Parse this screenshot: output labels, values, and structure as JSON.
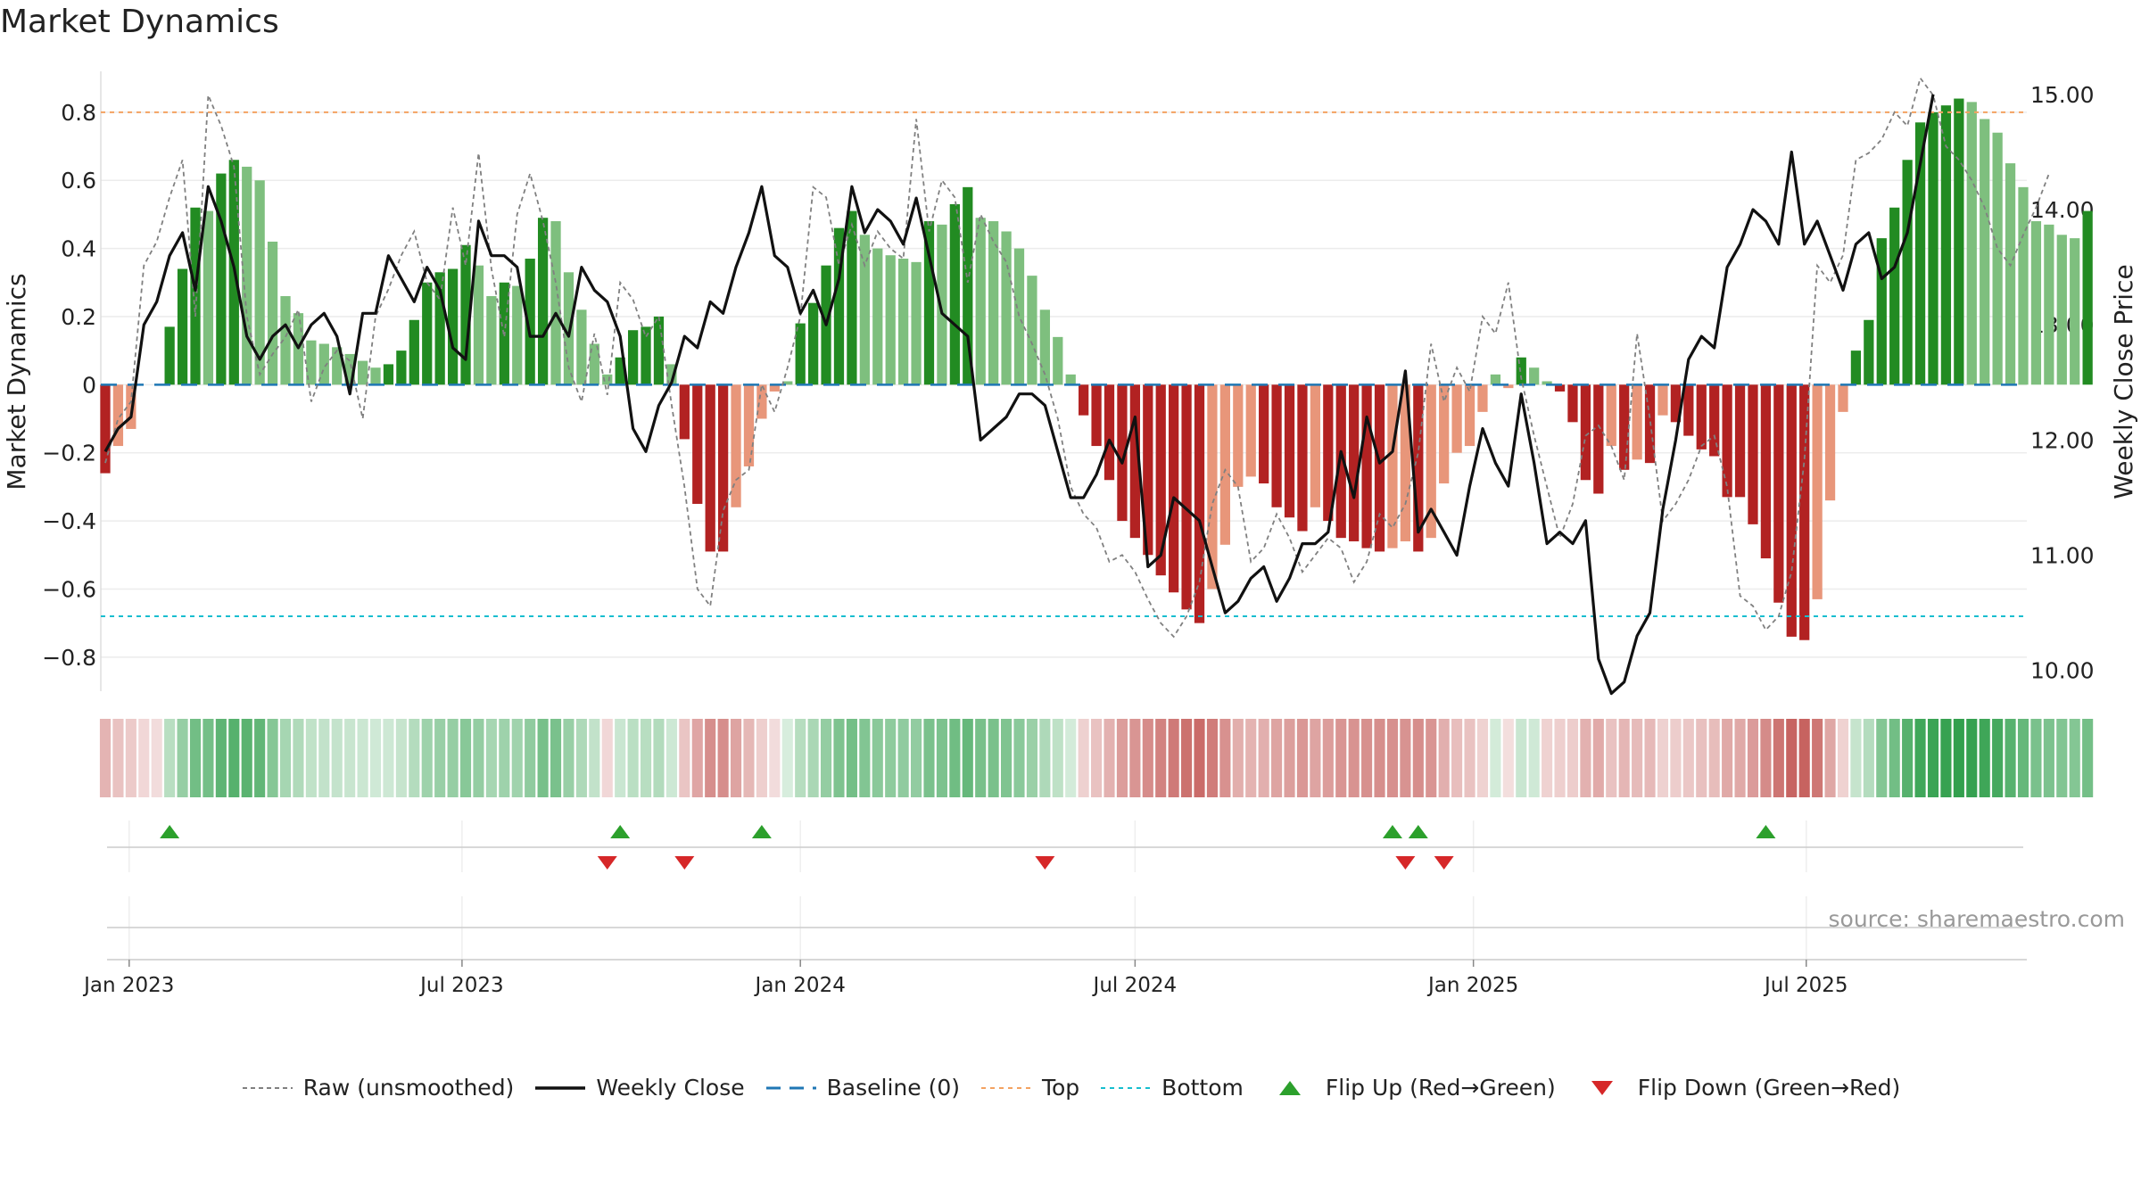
{
  "title": "Market Dynamics",
  "source": "source: sharemaestro.com",
  "chart_data": {
    "type": "bar",
    "x_start": "2022-12-19",
    "x_end": "2025-10-27",
    "x_step_days": 7,
    "left_axis": {
      "label": "Market Dynamics",
      "ylim": [
        -0.9,
        0.92
      ],
      "ticks": [
        "0.8",
        "0.6",
        "0.4",
        "0.2",
        "0",
        "−0.2",
        "−0.4",
        "−0.6",
        "−0.8"
      ],
      "tick_values": [
        0.8,
        0.6,
        0.4,
        0.2,
        0,
        -0.2,
        -0.4,
        -0.6,
        -0.8
      ]
    },
    "right_axis": {
      "label": "Weekly Close Price",
      "ylim": [
        9.82,
        15.2
      ],
      "ticks": [
        "15.00",
        "14.00",
        "13.00",
        "12.00",
        "11.00",
        "10.00"
      ],
      "tick_values": [
        15,
        14,
        13,
        12,
        11,
        10
      ]
    },
    "x_ticks": [
      {
        "label": "Jan 2023",
        "date": "2023-01-01"
      },
      {
        "label": "Jul 2023",
        "date": "2023-07-01"
      },
      {
        "label": "Jan 2024",
        "date": "2024-01-01"
      },
      {
        "label": "Jul 2024",
        "date": "2024-07-01"
      },
      {
        "label": "Jan 2025",
        "date": "2025-01-01"
      },
      {
        "label": "Jul 2025",
        "date": "2025-07-01"
      }
    ],
    "reference_lines": {
      "baseline": 0,
      "top": 0.8,
      "bottom": -0.68
    },
    "bars_values": [
      -0.26,
      -0.18,
      -0.13,
      0,
      0,
      0.17,
      0.34,
      0.52,
      0.51,
      0.62,
      0.66,
      0.64,
      0.6,
      0.42,
      0.26,
      0.21,
      0.13,
      0.12,
      0.11,
      0.09,
      0.07,
      0.05,
      0.06,
      0.1,
      0.19,
      0.3,
      0.33,
      0.34,
      0.41,
      0.35,
      0.26,
      0.3,
      0.29,
      0.37,
      0.49,
      0.48,
      0.33,
      0.22,
      0.12,
      0.03,
      0.08,
      0.16,
      0.17,
      0.2,
      0.06,
      -0.16,
      -0.35,
      -0.49,
      -0.49,
      -0.36,
      -0.24,
      -0.1,
      -0.02,
      0.01,
      0.18,
      0.24,
      0.35,
      0.46,
      0.51,
      0.44,
      0.4,
      0.38,
      0.37,
      0.36,
      0.48,
      0.47,
      0.53,
      0.58,
      0.49,
      0.48,
      0.45,
      0.4,
      0.32,
      0.22,
      0.14,
      0.03,
      -0.09,
      -0.18,
      -0.28,
      -0.4,
      -0.45,
      -0.5,
      -0.56,
      -0.61,
      -0.66,
      -0.7,
      -0.6,
      -0.47,
      -0.3,
      -0.27,
      -0.29,
      -0.36,
      -0.39,
      -0.43,
      -0.36,
      -0.4,
      -0.45,
      -0.46,
      -0.48,
      -0.49,
      -0.48,
      -0.46,
      -0.49,
      -0.45,
      -0.29,
      -0.2,
      -0.18,
      -0.08,
      0.03,
      -0.01,
      0.08,
      0.05,
      0.01,
      -0.02,
      -0.11,
      -0.28,
      -0.32,
      -0.18,
      -0.25,
      -0.22,
      -0.23,
      -0.09,
      -0.11,
      -0.15,
      -0.19,
      -0.21,
      -0.33,
      -0.33,
      -0.41,
      -0.51,
      -0.64,
      -0.74,
      -0.75,
      -0.63,
      -0.34,
      -0.08,
      0.1,
      0.19,
      0.43,
      0.52,
      0.66,
      0.77,
      0.8,
      0.82,
      0.84,
      0.83,
      0.78,
      0.74,
      0.65,
      0.58,
      0.48,
      0.47,
      0.44,
      0.43,
      0.51
    ],
    "raw_values": [
      -0.23,
      -0.1,
      -0.05,
      0.35,
      0.42,
      0.55,
      0.66,
      0.2,
      0.85,
      0.76,
      0.64,
      0.2,
      0.03,
      0.09,
      0.14,
      0.22,
      -0.05,
      0.05,
      0.1,
      0.07,
      -0.1,
      0.2,
      0.28,
      0.38,
      0.45,
      0.3,
      0.25,
      0.52,
      0.35,
      0.68,
      0.34,
      0.14,
      0.5,
      0.62,
      0.48,
      0.3,
      0.05,
      -0.05,
      0.15,
      -0.03,
      0.3,
      0.25,
      0.14,
      0.2,
      -0.06,
      -0.3,
      -0.6,
      -0.65,
      -0.37,
      -0.28,
      -0.25,
      0,
      -0.08,
      0.05,
      0.2,
      0.58,
      0.55,
      0.35,
      0.47,
      0.35,
      0.45,
      0.4,
      0.37,
      0.78,
      0.45,
      0.6,
      0.55,
      0.3,
      0.5,
      0.42,
      0.36,
      0.2,
      0.12,
      0.03,
      -0.1,
      -0.3,
      -0.38,
      -0.42,
      -0.52,
      -0.5,
      -0.55,
      -0.63,
      -0.7,
      -0.74,
      -0.68,
      -0.58,
      -0.35,
      -0.25,
      -0.3,
      -0.52,
      -0.48,
      -0.38,
      -0.45,
      -0.55,
      -0.5,
      -0.45,
      -0.48,
      -0.58,
      -0.52,
      -0.38,
      -0.42,
      -0.35,
      -0.2,
      0.12,
      -0.05,
      0.05,
      -0.02,
      0.2,
      0.15,
      0.3,
      0.02,
      -0.15,
      -0.3,
      -0.45,
      -0.35,
      -0.15,
      -0.12,
      -0.18,
      -0.28,
      0.15,
      -0.1,
      -0.4,
      -0.35,
      -0.28,
      -0.18,
      -0.15,
      -0.3,
      -0.62,
      -0.65,
      -0.72,
      -0.68,
      -0.55,
      -0.22,
      0.35,
      0.3,
      0.38,
      0.66,
      0.68,
      0.72,
      0.8,
      0.76,
      0.9,
      0.85,
      0.7,
      0.66,
      0.6,
      0.52,
      0.4,
      0.35,
      0.44,
      0.52,
      0.62
    ],
    "close_values": [
      11.9,
      12.1,
      12.2,
      13.0,
      13.2,
      13.6,
      13.8,
      13.3,
      14.2,
      13.9,
      13.5,
      12.9,
      12.7,
      12.9,
      13.0,
      12.8,
      13.0,
      13.1,
      12.9,
      12.4,
      13.1,
      13.1,
      13.6,
      13.4,
      13.2,
      13.5,
      13.3,
      12.8,
      12.7,
      13.9,
      13.6,
      13.6,
      13.5,
      12.9,
      12.9,
      13.1,
      12.9,
      13.5,
      13.3,
      13.2,
      12.9,
      12.1,
      11.9,
      12.3,
      12.5,
      12.9,
      12.8,
      13.2,
      13.1,
      13.5,
      13.8,
      14.2,
      13.6,
      13.5,
      13.1,
      13.3,
      13.0,
      13.4,
      14.2,
      13.8,
      14.0,
      13.9,
      13.7,
      14.1,
      13.6,
      13.1,
      13.0,
      12.9,
      12.0,
      12.1,
      12.2,
      12.4,
      12.4,
      12.3,
      11.9,
      11.5,
      11.5,
      11.7,
      12.0,
      11.8,
      12.2,
      10.9,
      11.0,
      11.5,
      11.4,
      11.3,
      10.9,
      10.5,
      10.6,
      10.8,
      10.9,
      10.6,
      10.8,
      11.1,
      11.1,
      11.2,
      11.9,
      11.5,
      12.2,
      11.8,
      11.9,
      12.6,
      11.2,
      11.4,
      11.2,
      11.0,
      11.6,
      12.1,
      11.8,
      11.6,
      12.4,
      11.8,
      11.1,
      11.2,
      11.1,
      11.3,
      10.1,
      9.8,
      9.9,
      10.3,
      10.5,
      11.4,
      12.0,
      12.7,
      12.9,
      12.8,
      13.5,
      13.7,
      14.0,
      13.9,
      13.7,
      14.5,
      13.7,
      13.9,
      13.6,
      13.3,
      13.7,
      13.8,
      13.4,
      13.5,
      13.8,
      14.4,
      15.0
    ],
    "state_values": [
      -0.26,
      -0.18,
      -0.13,
      -0.05,
      -0.02,
      0.17,
      0.34,
      0.52,
      0.51,
      0.62,
      0.66,
      0.64,
      0.6,
      0.42,
      0.26,
      0.21,
      0.13,
      0.12,
      0.11,
      0.09,
      0.07,
      0.05,
      0.06,
      0.1,
      0.19,
      0.3,
      0.33,
      0.34,
      0.41,
      0.35,
      0.26,
      0.3,
      0.29,
      0.37,
      0.49,
      0.48,
      0.33,
      0.22,
      0.12,
      -0.05,
      0.08,
      0.16,
      0.17,
      0.2,
      0.06,
      -0.16,
      -0.35,
      -0.49,
      -0.49,
      -0.36,
      -0.24,
      -0.1,
      -0.02,
      0.01,
      0.18,
      0.24,
      0.35,
      0.46,
      0.51,
      0.44,
      0.4,
      0.38,
      0.37,
      0.36,
      0.48,
      0.47,
      0.53,
      0.58,
      0.49,
      0.48,
      0.45,
      0.4,
      0.32,
      0.22,
      0.14,
      0.03,
      -0.09,
      -0.18,
      -0.28,
      -0.4,
      -0.45,
      -0.5,
      -0.56,
      -0.61,
      -0.66,
      -0.7,
      -0.6,
      -0.47,
      -0.3,
      -0.27,
      -0.29,
      -0.36,
      -0.39,
      -0.43,
      -0.36,
      -0.4,
      -0.45,
      -0.46,
      -0.48,
      -0.49,
      -0.48,
      -0.46,
      -0.49,
      -0.45,
      -0.29,
      -0.2,
      -0.18,
      -0.08,
      0.03,
      -0.01,
      0.08,
      0.05,
      -0.08,
      -0.1,
      -0.11,
      -0.28,
      -0.32,
      -0.18,
      -0.25,
      -0.22,
      -0.23,
      -0.09,
      -0.11,
      -0.15,
      -0.19,
      -0.21,
      -0.33,
      -0.33,
      -0.41,
      -0.51,
      -0.64,
      -0.74,
      -0.75,
      -0.63,
      -0.34,
      -0.08,
      0.1,
      0.19,
      0.43,
      0.52,
      0.66,
      0.77,
      0.8,
      0.82,
      0.84,
      0.83,
      0.78,
      0.74,
      0.65,
      0.58,
      0.48,
      0.47,
      0.44,
      0.43,
      0.51
    ],
    "flip_up_dates": [
      "2023-01-23",
      "2023-09-25",
      "2023-12-11",
      "2024-11-18",
      "2024-12-02",
      "2025-06-09"
    ],
    "flip_down_dates": [
      "2023-09-18",
      "2023-10-30",
      "2024-05-13",
      "2024-11-25",
      "2024-12-16"
    ],
    "legend": [
      {
        "key": "raw",
        "label": "Raw (unsmoothed)"
      },
      {
        "key": "close",
        "label": "Weekly Close"
      },
      {
        "key": "baseline",
        "label": "Baseline (0)"
      },
      {
        "key": "top",
        "label": "Top"
      },
      {
        "key": "bottom",
        "label": "Bottom"
      },
      {
        "key": "flipup",
        "label": "Flip Up (Red→Green)"
      },
      {
        "key": "flipdown",
        "label": "Flip Down (Green→Red)"
      }
    ],
    "colors": {
      "green_strong": "#228b22",
      "green_light": "#7ebf7e",
      "red_strong": "#b22222",
      "red_light": "#e8967a",
      "raw": "#808080",
      "close": "#111111",
      "baseline": "#1f77b4",
      "top": "#f4a261",
      "bottom": "#17becf",
      "flip_up": "#2ca02c",
      "flip_down": "#d62728"
    }
  }
}
